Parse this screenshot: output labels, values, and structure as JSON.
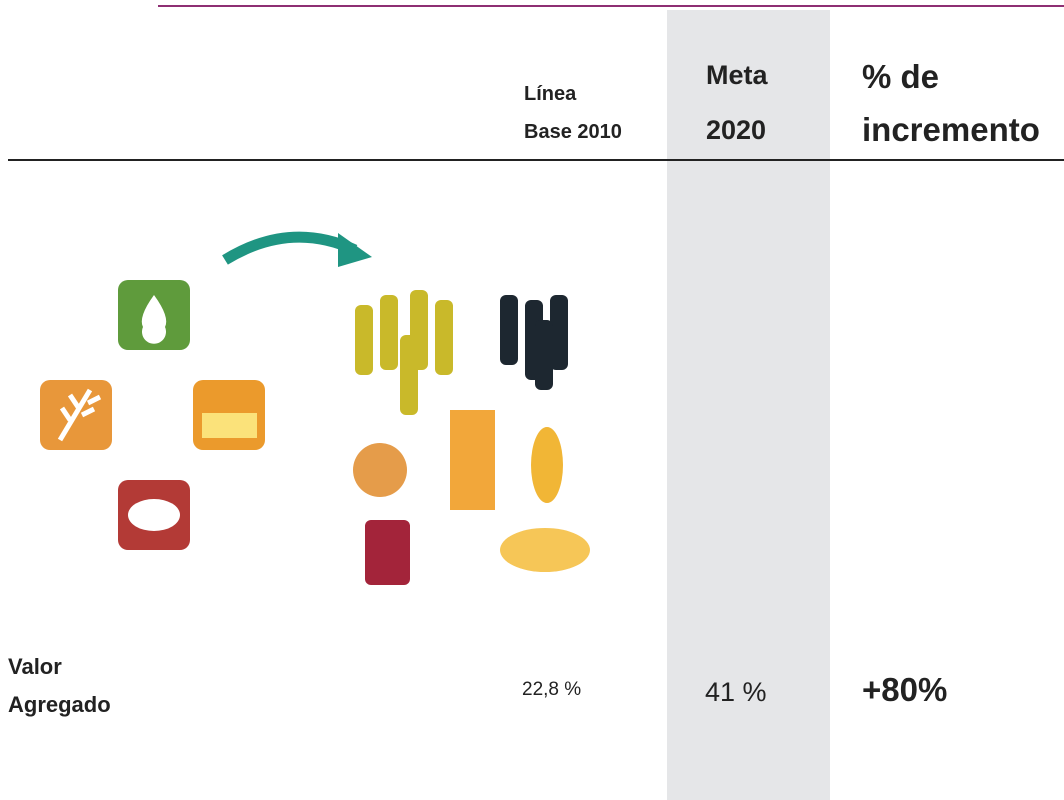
{
  "table": {
    "header": {
      "baseline": [
        "Línea",
        "Base 2010"
      ],
      "target": [
        "Meta",
        "2020"
      ],
      "increase": [
        "% de",
        "incremento"
      ]
    },
    "rows": [
      {
        "label": [
          "Valor",
          "Agregado"
        ],
        "baseline": "22,8 %",
        "target": "41 %",
        "increase": "+80%"
      }
    ]
  }
}
